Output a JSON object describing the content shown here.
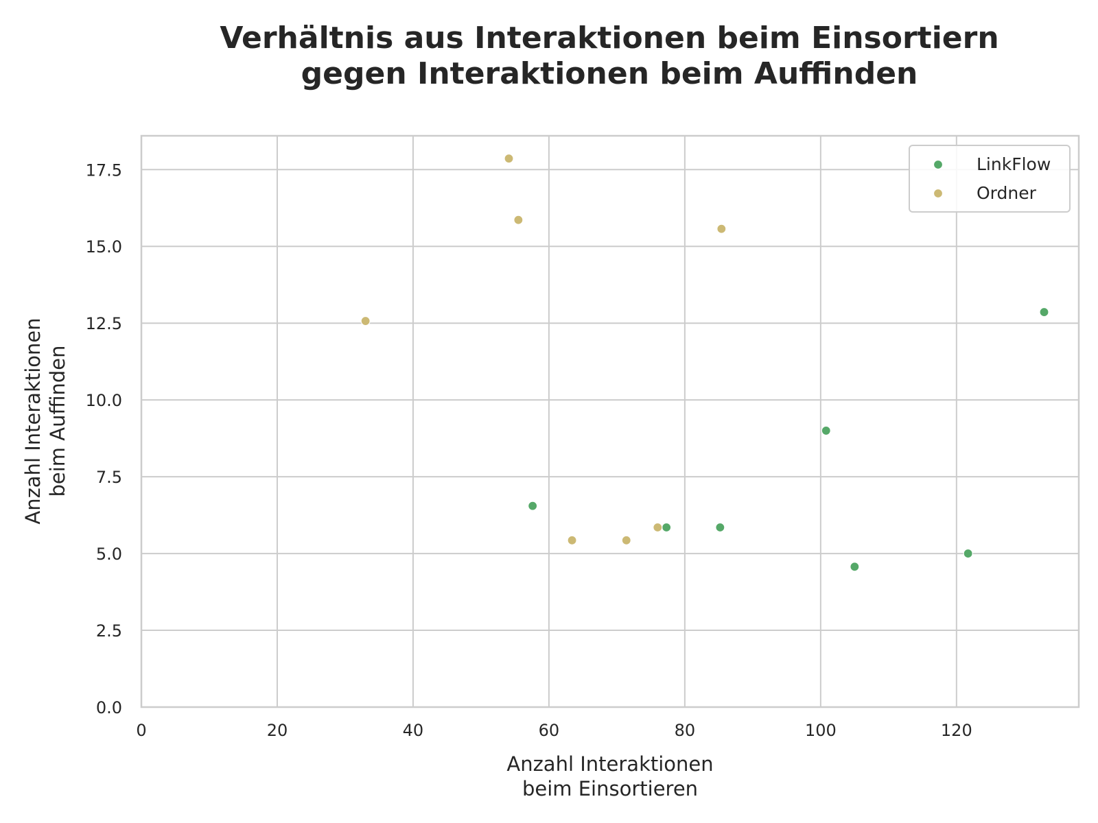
{
  "chart_data": {
    "type": "scatter",
    "title": [
      "Verhältnis aus Interaktionen beim Einsortiern",
      "gegen Interaktionen beim Auffinden"
    ],
    "xlabel": [
      "Anzahl Interaktionen",
      "beim Einsortieren"
    ],
    "ylabel": [
      "Anzahl Interaktionen",
      "beim Auffinden"
    ],
    "xlim": [
      0,
      138
    ],
    "ylim": [
      0,
      18.6
    ],
    "xticks": [
      0,
      20,
      40,
      60,
      80,
      100,
      120
    ],
    "xtick_labels": [
      "0",
      "20",
      "40",
      "60",
      "80",
      "100",
      "120"
    ],
    "yticks": [
      0,
      2.5,
      5,
      7.5,
      10,
      12.5,
      15,
      17.5
    ],
    "ytick_labels": [
      "0.0",
      "2.5",
      "5.0",
      "7.5",
      "10.0",
      "12.5",
      "15.0",
      "17.5"
    ],
    "grid": true,
    "legend_position": "top-right",
    "series": [
      {
        "name": "LinkFlow",
        "color": "#55a868",
        "points": [
          {
            "x": 57.6,
            "y": 6.55
          },
          {
            "x": 77.3,
            "y": 5.85
          },
          {
            "x": 85.2,
            "y": 5.85
          },
          {
            "x": 100.8,
            "y": 9.0
          },
          {
            "x": 105.0,
            "y": 4.57
          },
          {
            "x": 121.7,
            "y": 5.0
          },
          {
            "x": 132.9,
            "y": 12.86
          }
        ]
      },
      {
        "name": "Ordner",
        "color": "#ccb974",
        "points": [
          {
            "x": 33.0,
            "y": 12.57
          },
          {
            "x": 54.1,
            "y": 17.86
          },
          {
            "x": 55.5,
            "y": 15.86
          },
          {
            "x": 63.4,
            "y": 5.43
          },
          {
            "x": 71.4,
            "y": 5.43
          },
          {
            "x": 76.0,
            "y": 5.85
          },
          {
            "x": 85.4,
            "y": 15.57
          }
        ]
      }
    ]
  }
}
